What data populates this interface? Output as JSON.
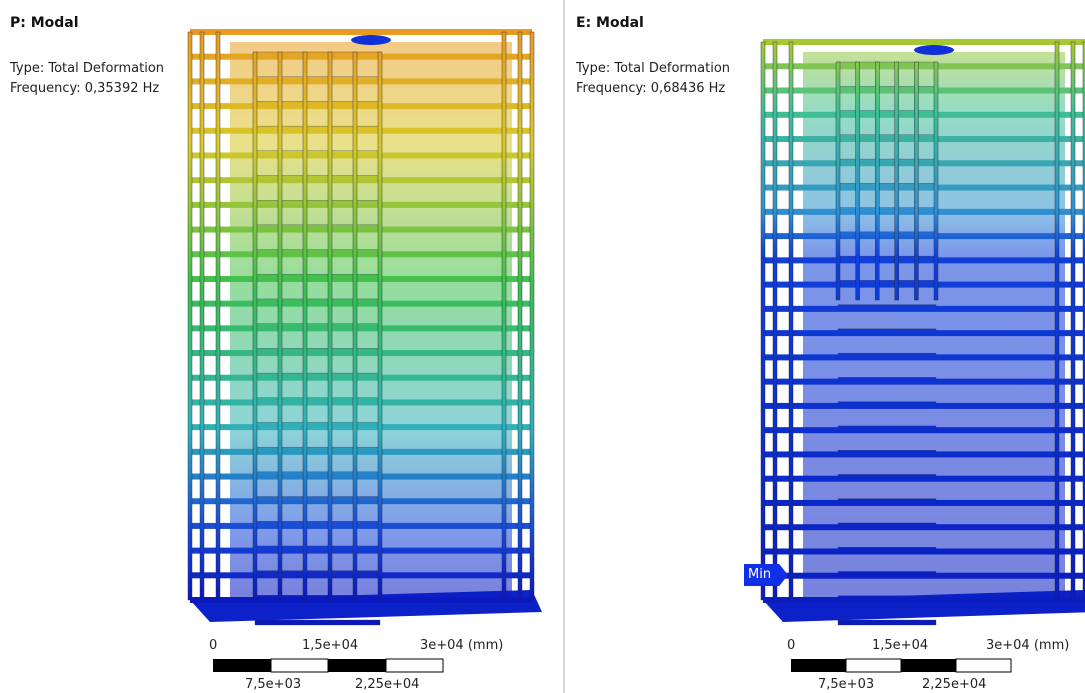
{
  "panels": [
    {
      "title": "P: Modal",
      "type": "Type: Total Deformation",
      "frequency": "Frequency: 0,35392 Hz",
      "scale": {
        "top": [
          "0",
          "1,5e+04",
          "3e+04 (mm)"
        ],
        "bottom": [
          "7,5e+03",
          "2,25e+04"
        ]
      }
    },
    {
      "title": "E: Modal",
      "type": "Type: Total Deformation",
      "frequency": "Frequency: 0,68436 Hz",
      "scale": {
        "top": [
          "0",
          "1,5e+04",
          "3e+04 (mm)"
        ],
        "bottom": [
          "7,5e+03",
          "2,25e+04"
        ]
      },
      "marker": "Min"
    }
  ]
}
